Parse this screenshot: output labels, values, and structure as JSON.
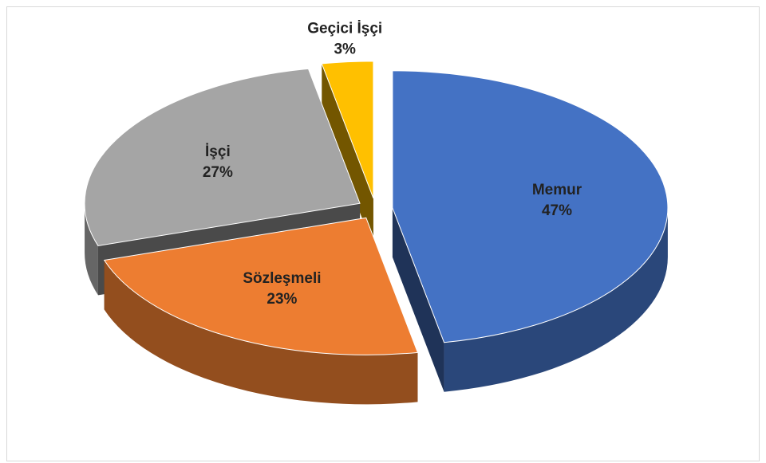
{
  "chart_data": {
    "type": "pie3d",
    "categories": [
      "Memur",
      "Sözleşmeli",
      "İşçi",
      "Geçici İşçi"
    ],
    "values": [
      47,
      23,
      27,
      3
    ],
    "value_labels": [
      "47%",
      "23%",
      "27%",
      "3%"
    ],
    "colors": [
      "#4472c4",
      "#ed7d31",
      "#a5a5a5",
      "#ffc000"
    ]
  }
}
